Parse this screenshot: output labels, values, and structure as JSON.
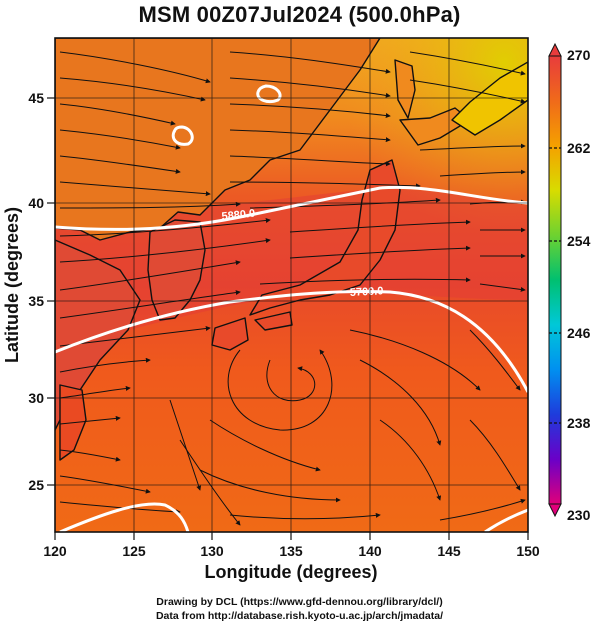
{
  "title": "MSM 00Z07Jul2024 (500.0hPa)",
  "x_axis": {
    "label": "Longitude (degrees)",
    "ticks": [
      "120",
      "125",
      "130",
      "135",
      "140",
      "145",
      "150"
    ]
  },
  "y_axis": {
    "label": "Latitude  (degrees)",
    "ticks": [
      "25",
      "30",
      "35",
      "40",
      "45"
    ]
  },
  "colorbar": {
    "ticks": [
      "270",
      "262",
      "254",
      "246",
      "238",
      "230"
    ],
    "colors": [
      "#e0007a",
      "#8a00c8",
      "#2020e0",
      "#1f5fe6",
      "#00b4f0",
      "#00d2a0",
      "#00c850",
      "#7ad22a",
      "#cfe000",
      "#f0c800",
      "#f59a00",
      "#f07000",
      "#ea4a1a",
      "#e83c3c"
    ]
  },
  "contour_labels": [
    "5880.0",
    "5700.0"
  ],
  "footer": {
    "line1": "Drawing by DCL (https://www.gfd-dennou.org/library/dcl/)",
    "line2": "Data from http://database.rish.kyoto-u.ac.jp/arch/jmadata/"
  }
}
